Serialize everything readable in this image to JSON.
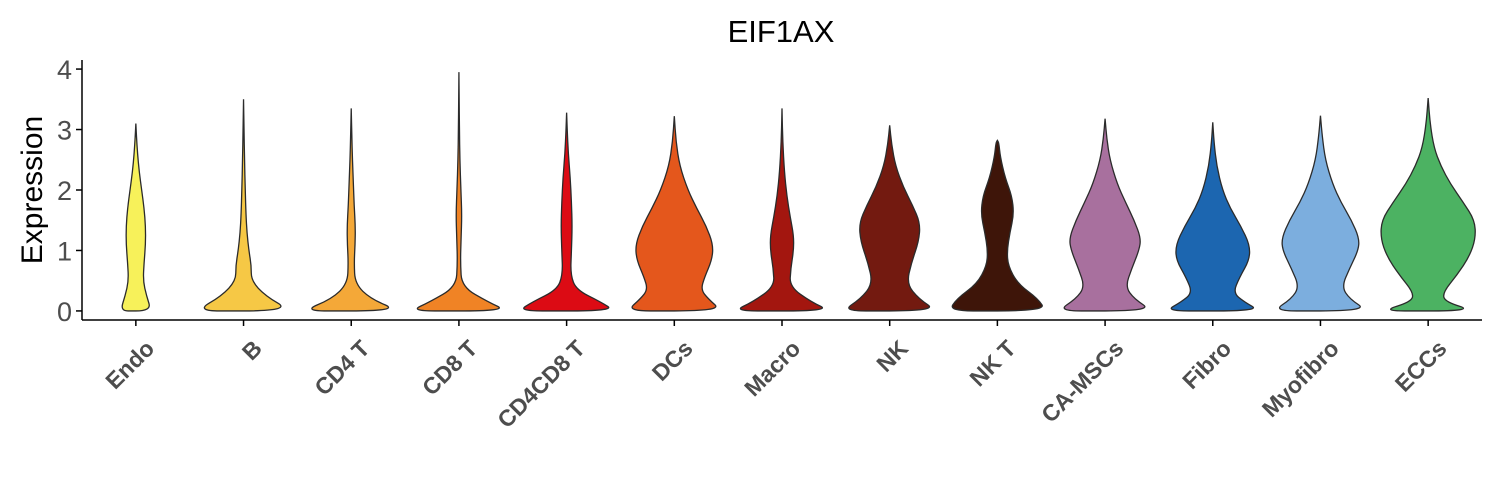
{
  "chart_data": {
    "type": "violin",
    "title": "EIF1AX",
    "xlabel": "",
    "ylabel": "Expression",
    "ylim": [
      -0.15,
      4.15
    ],
    "yticks": [
      0,
      1,
      2,
      3,
      4
    ],
    "grid": false,
    "legend": "none",
    "categories": [
      "Endo",
      "B",
      "CD4 T",
      "CD8 T",
      "CD4CD8 T",
      "DCs",
      "Macro",
      "NK",
      "NK T",
      "CA-MSCs",
      "Fibro",
      "Myofibro",
      "ECCs"
    ],
    "colors": [
      "#F7F15A",
      "#F6C845",
      "#F4A838",
      "#F08325",
      "#DC0B14",
      "#E4571C",
      "#A3160F",
      "#731A10",
      "#3E1509",
      "#A8709E",
      "#1C66B0",
      "#7CAEDE",
      "#4CB262"
    ],
    "series": [
      {
        "name": "Endo",
        "max": 3.1,
        "density": [
          [
            0,
            0.32
          ],
          [
            0.25,
            0.22
          ],
          [
            0.5,
            0.15
          ],
          [
            0.8,
            0.17
          ],
          [
            1.1,
            0.2
          ],
          [
            1.4,
            0.2
          ],
          [
            1.7,
            0.17
          ],
          [
            2.0,
            0.12
          ],
          [
            2.3,
            0.07
          ],
          [
            2.6,
            0.035
          ],
          [
            2.9,
            0.012
          ],
          [
            3.1,
            0
          ]
        ]
      },
      {
        "name": "B",
        "max": 3.5,
        "density": [
          [
            0,
            0.98
          ],
          [
            0.25,
            0.45
          ],
          [
            0.5,
            0.16
          ],
          [
            0.75,
            0.16
          ],
          [
            1.0,
            0.11
          ],
          [
            1.3,
            0.07
          ],
          [
            1.6,
            0.05
          ],
          [
            2.0,
            0.035
          ],
          [
            2.5,
            0.02
          ],
          [
            3.0,
            0.01
          ],
          [
            3.5,
            0
          ]
        ]
      },
      {
        "name": "CD4 T",
        "max": 3.35,
        "density": [
          [
            0,
            1.0
          ],
          [
            0.2,
            0.4
          ],
          [
            0.45,
            0.08
          ],
          [
            0.8,
            0.06
          ],
          [
            1.1,
            0.08
          ],
          [
            1.4,
            0.085
          ],
          [
            1.75,
            0.06
          ],
          [
            2.1,
            0.045
          ],
          [
            2.5,
            0.025
          ],
          [
            2.9,
            0.012
          ],
          [
            3.35,
            0
          ]
        ]
      },
      {
        "name": "CD8 T",
        "max": 3.95,
        "density": [
          [
            0,
            1.0
          ],
          [
            0.15,
            0.6
          ],
          [
            0.4,
            0.06
          ],
          [
            0.8,
            0.03
          ],
          [
            1.2,
            0.045
          ],
          [
            1.6,
            0.06
          ],
          [
            2.0,
            0.04
          ],
          [
            2.5,
            0.02
          ],
          [
            3.0,
            0.01
          ],
          [
            3.5,
            0.005
          ],
          [
            3.95,
            0
          ]
        ]
      },
      {
        "name": "CD4CD8 T",
        "max": 3.28,
        "density": [
          [
            0,
            1.0
          ],
          [
            0.15,
            0.7
          ],
          [
            0.35,
            0.2
          ],
          [
            0.6,
            0.08
          ],
          [
            1.0,
            0.1
          ],
          [
            1.4,
            0.115
          ],
          [
            1.8,
            0.1
          ],
          [
            2.2,
            0.075
          ],
          [
            2.6,
            0.035
          ],
          [
            3.0,
            0.012
          ],
          [
            3.28,
            0
          ]
        ]
      },
      {
        "name": "DCs",
        "max": 3.22,
        "density": [
          [
            0,
            0.98
          ],
          [
            0.2,
            0.7
          ],
          [
            0.35,
            0.55
          ],
          [
            0.55,
            0.62
          ],
          [
            0.85,
            0.78
          ],
          [
            1.1,
            0.8
          ],
          [
            1.4,
            0.66
          ],
          [
            1.7,
            0.46
          ],
          [
            2.0,
            0.28
          ],
          [
            2.4,
            0.11
          ],
          [
            2.8,
            0.035
          ],
          [
            3.22,
            0
          ]
        ]
      },
      {
        "name": "Macro",
        "max": 3.35,
        "density": [
          [
            0,
            1.0
          ],
          [
            0.15,
            0.6
          ],
          [
            0.4,
            0.16
          ],
          [
            0.7,
            0.18
          ],
          [
            1.0,
            0.24
          ],
          [
            1.25,
            0.24
          ],
          [
            1.55,
            0.17
          ],
          [
            1.9,
            0.1
          ],
          [
            2.3,
            0.05
          ],
          [
            2.8,
            0.015
          ],
          [
            3.35,
            0
          ]
        ]
      },
      {
        "name": "NK",
        "max": 3.07,
        "density": [
          [
            0,
            0.98
          ],
          [
            0.2,
            0.6
          ],
          [
            0.45,
            0.35
          ],
          [
            0.8,
            0.45
          ],
          [
            1.15,
            0.6
          ],
          [
            1.45,
            0.63
          ],
          [
            1.75,
            0.47
          ],
          [
            2.05,
            0.28
          ],
          [
            2.4,
            0.12
          ],
          [
            2.75,
            0.04
          ],
          [
            3.07,
            0
          ]
        ]
      },
      {
        "name": "NK T",
        "max": 2.82,
        "density": [
          [
            0,
            1.0
          ],
          [
            0.2,
            0.84
          ],
          [
            0.45,
            0.42
          ],
          [
            0.75,
            0.22
          ],
          [
            1.0,
            0.2
          ],
          [
            1.3,
            0.26
          ],
          [
            1.6,
            0.34
          ],
          [
            1.9,
            0.3
          ],
          [
            2.2,
            0.16
          ],
          [
            2.55,
            0.06
          ],
          [
            2.78,
            0.03
          ],
          [
            2.82,
            0
          ]
        ]
      },
      {
        "name": "CA-MSCs",
        "max": 3.18,
        "density": [
          [
            0,
            0.98
          ],
          [
            0.2,
            0.6
          ],
          [
            0.4,
            0.42
          ],
          [
            0.7,
            0.55
          ],
          [
            1.0,
            0.7
          ],
          [
            1.2,
            0.74
          ],
          [
            1.5,
            0.6
          ],
          [
            1.8,
            0.42
          ],
          [
            2.1,
            0.25
          ],
          [
            2.5,
            0.1
          ],
          [
            2.85,
            0.035
          ],
          [
            3.18,
            0
          ]
        ]
      },
      {
        "name": "Fibro",
        "max": 3.12,
        "density": [
          [
            0,
            0.98
          ],
          [
            0.15,
            0.65
          ],
          [
            0.3,
            0.42
          ],
          [
            0.55,
            0.55
          ],
          [
            0.85,
            0.76
          ],
          [
            1.1,
            0.76
          ],
          [
            1.4,
            0.58
          ],
          [
            1.7,
            0.36
          ],
          [
            2.0,
            0.2
          ],
          [
            2.4,
            0.08
          ],
          [
            2.8,
            0.025
          ],
          [
            3.12,
            0
          ]
        ]
      },
      {
        "name": "Myofibro",
        "max": 3.23,
        "density": [
          [
            0,
            0.98
          ],
          [
            0.2,
            0.6
          ],
          [
            0.4,
            0.44
          ],
          [
            0.7,
            0.6
          ],
          [
            1.0,
            0.78
          ],
          [
            1.2,
            0.8
          ],
          [
            1.5,
            0.64
          ],
          [
            1.8,
            0.42
          ],
          [
            2.1,
            0.25
          ],
          [
            2.5,
            0.1
          ],
          [
            2.9,
            0.035
          ],
          [
            3.23,
            0
          ]
        ]
      },
      {
        "name": "ECCs",
        "max": 3.52,
        "density": [
          [
            0,
            0.96
          ],
          [
            0.15,
            0.35
          ],
          [
            0.3,
            0.3
          ],
          [
            0.6,
            0.6
          ],
          [
            0.9,
            0.85
          ],
          [
            1.2,
            0.98
          ],
          [
            1.5,
            0.96
          ],
          [
            1.8,
            0.72
          ],
          [
            2.1,
            0.46
          ],
          [
            2.4,
            0.26
          ],
          [
            2.7,
            0.12
          ],
          [
            3.1,
            0.04
          ],
          [
            3.52,
            0
          ]
        ]
      }
    ]
  }
}
